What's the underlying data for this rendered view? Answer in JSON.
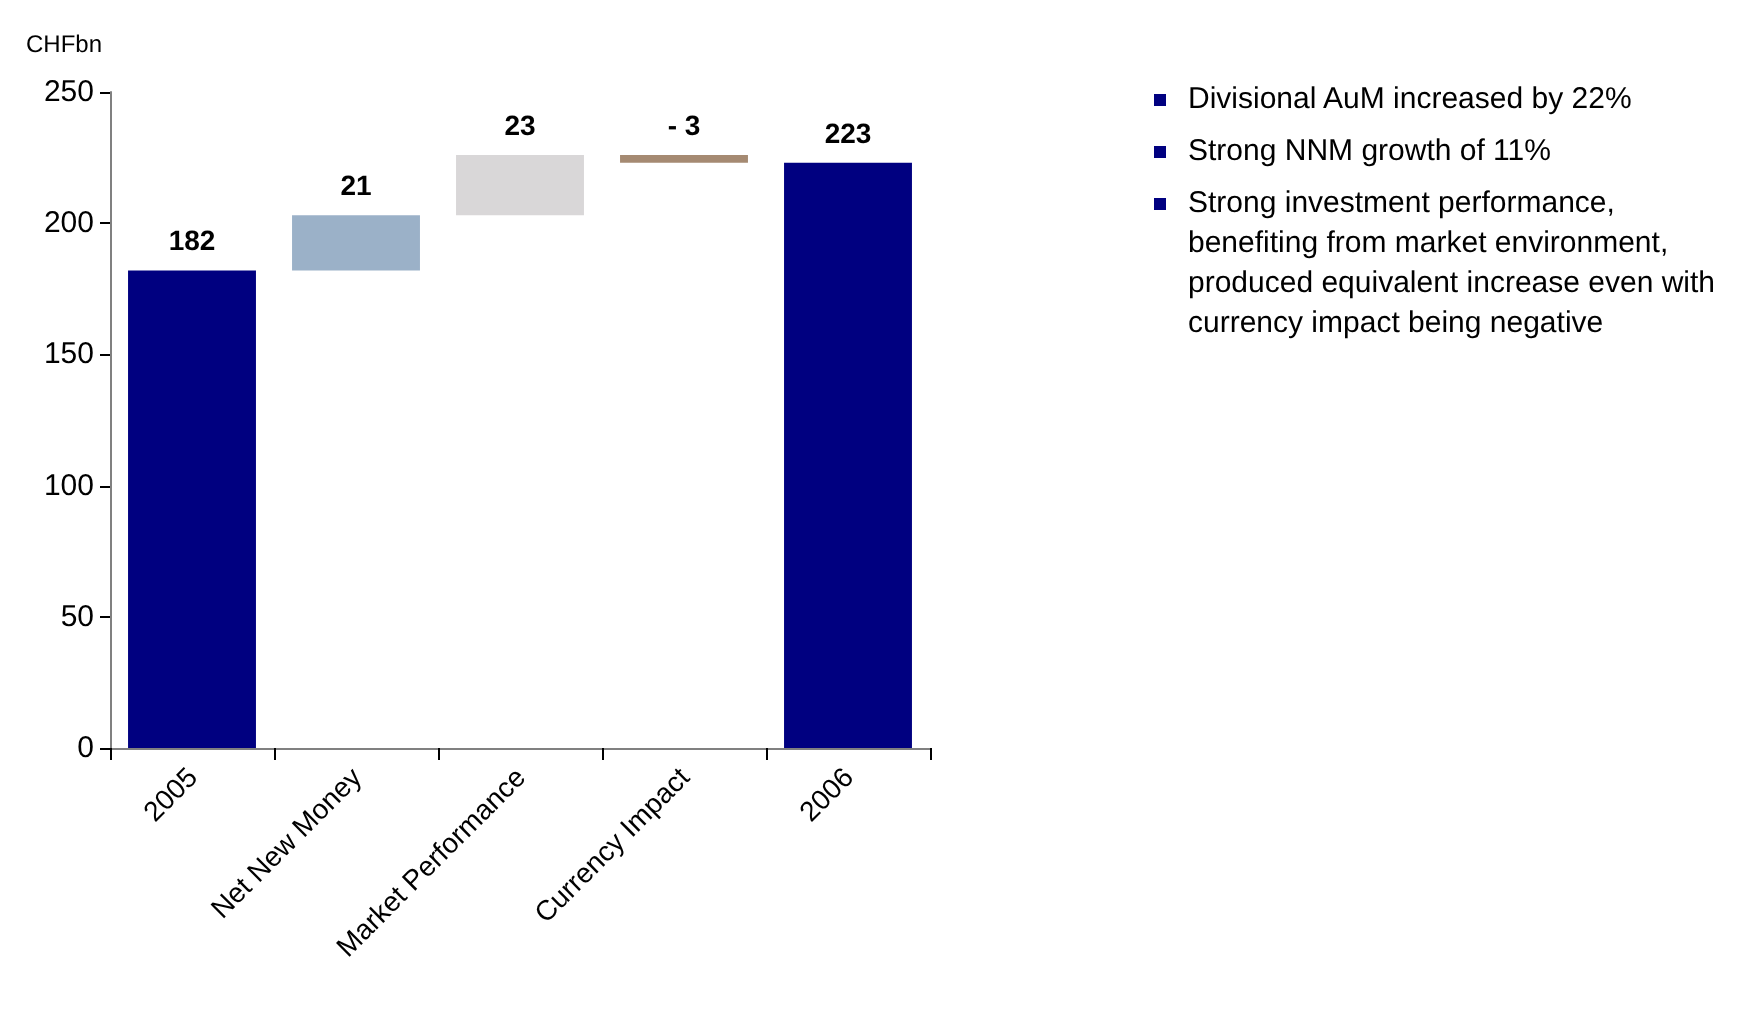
{
  "chart_data": {
    "type": "bar",
    "ylabel": "CHFbn",
    "categories": [
      "2005",
      "Net New Money",
      "Market Performance",
      "Currency Impact",
      "2006"
    ],
    "values": [
      182,
      21,
      23,
      -3,
      223
    ],
    "base": [
      0,
      182,
      203,
      226,
      0
    ],
    "colors": [
      "#000080",
      "#9bb1c8",
      "#d9d7d8",
      "#a58a72",
      "#000080"
    ],
    "value_labels": [
      "182",
      "21",
      "23",
      "- 3",
      "223"
    ],
    "ylim": [
      0,
      250
    ],
    "yticks": [
      0,
      50,
      100,
      150,
      200,
      250
    ],
    "grid": false,
    "annotations": [
      "Divisional AuM increased by 22%",
      "Strong NNM growth of 11%",
      "Strong investment performance, benefiting from market environment, produced equivalent increase even with currency impact being negative"
    ]
  }
}
